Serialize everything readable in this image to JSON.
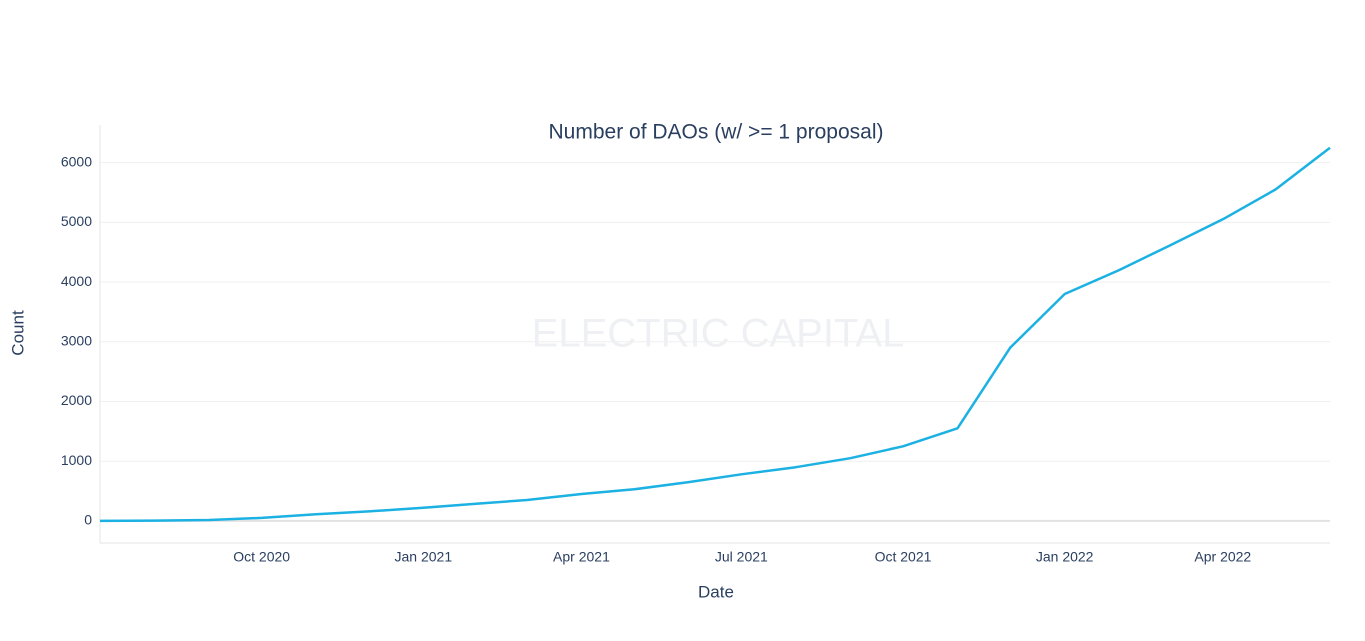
{
  "chart_data": {
    "type": "line",
    "title": "Number of DAOs (w/ >= 1 proposal)",
    "watermark": "ELECTRIC CAPITAL",
    "x_label": "Date",
    "y_label": "Count",
    "x": [
      "2020-07",
      "2020-08",
      "2020-09",
      "2020-10",
      "2020-11",
      "2020-12",
      "2021-01",
      "2021-02",
      "2021-03",
      "2021-04",
      "2021-05",
      "2021-06",
      "2021-07",
      "2021-08",
      "2021-09",
      "2021-10",
      "2021-11",
      "2021-12",
      "2022-01",
      "2022-02",
      "2022-03",
      "2022-04",
      "2022-05",
      "2022-06"
    ],
    "series": [
      {
        "name": "Count",
        "color": "#1cb1e3",
        "values": [
          0,
          5,
          15,
          50,
          110,
          160,
          220,
          290,
          350,
          450,
          530,
          650,
          780,
          900,
          1050,
          1250,
          1550,
          2900,
          3800,
          4200,
          4600,
          5050,
          5550,
          6250
        ]
      }
    ],
    "xlim": [
      "2020-07",
      "2022-06"
    ],
    "xticks": [
      {
        "value": "2020-10",
        "label": "Oct 2020"
      },
      {
        "value": "2021-01",
        "label": "Jan 2021"
      },
      {
        "value": "2021-04",
        "label": "Apr 2021"
      },
      {
        "value": "2021-07",
        "label": "Jul 2021"
      },
      {
        "value": "2021-10",
        "label": "Oct 2021"
      },
      {
        "value": "2022-01",
        "label": "Jan 2022"
      },
      {
        "value": "2022-04",
        "label": "Apr 2022"
      }
    ],
    "ylim": [
      -370,
      6630
    ],
    "yticks": [
      0,
      1000,
      2000,
      3000,
      4000,
      5000,
      6000
    ],
    "grid": true
  }
}
